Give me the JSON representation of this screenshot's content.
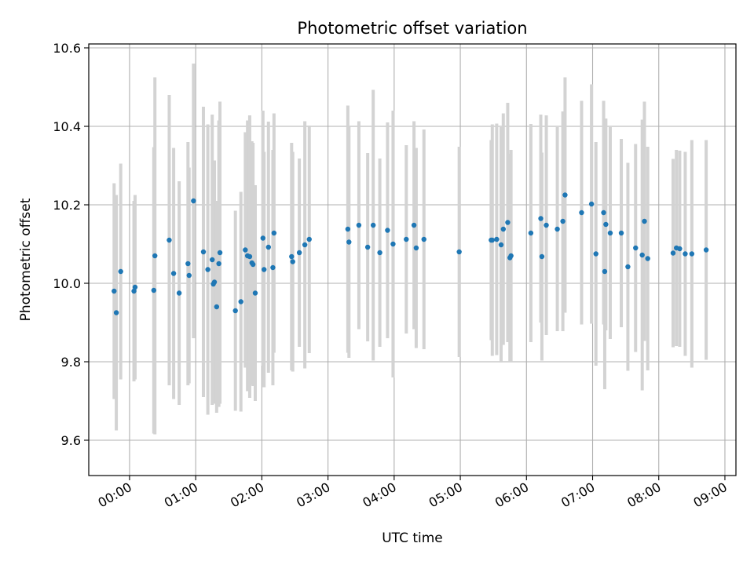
{
  "chart_data": {
    "type": "scatter",
    "title": "Photometric offset variation",
    "xlabel": "UTC time",
    "ylabel": "Photometric offset",
    "xlim": [
      "23:23",
      "09:10"
    ],
    "ylim": [
      9.51,
      10.61
    ],
    "grid": true,
    "legend": "none",
    "colors": {
      "point": "#1f77b4",
      "errorbar": "#d3d3d3",
      "grid": "#b0b0b0"
    },
    "x_ticks": [
      "00:00",
      "01:00",
      "02:00",
      "03:00",
      "04:00",
      "05:00",
      "06:00",
      "07:00",
      "08:00",
      "09:00"
    ],
    "y_ticks": [
      9.6,
      9.8,
      10.0,
      10.2,
      10.4,
      10.6
    ],
    "y_tick_labels": [
      "9.6",
      "9.8",
      "10.0",
      "10.2",
      "10.4",
      "10.6"
    ],
    "series": [
      {
        "points": [
          {
            "t": "23:46",
            "y": 9.98,
            "err": 0.275
          },
          {
            "t": "23:48",
            "y": 9.925,
            "err": 0.3
          },
          {
            "t": "23:52",
            "y": 10.03,
            "err": 0.275
          },
          {
            "t": "00:04",
            "y": 9.98,
            "err": 0.23
          },
          {
            "t": "00:05",
            "y": 9.99,
            "err": 0.235
          },
          {
            "t": "00:22",
            "y": 9.982,
            "err": 0.365
          },
          {
            "t": "00:23",
            "y": 10.07,
            "err": 0.455
          },
          {
            "t": "00:36",
            "y": 10.11,
            "err": 0.37
          },
          {
            "t": "00:40",
            "y": 10.025,
            "err": 0.32
          },
          {
            "t": "00:45",
            "y": 9.975,
            "err": 0.285
          },
          {
            "t": "00:53",
            "y": 10.05,
            "err": 0.31
          },
          {
            "t": "00:54",
            "y": 10.02,
            "err": 0.275
          },
          {
            "t": "00:58",
            "y": 10.21,
            "err": 0.35
          },
          {
            "t": "01:07",
            "y": 10.08,
            "err": 0.37
          },
          {
            "t": "01:11",
            "y": 10.035,
            "err": 0.37
          },
          {
            "t": "01:15",
            "y": 10.06,
            "err": 0.37
          },
          {
            "t": "01:16",
            "y": 9.998,
            "err": 0.29
          },
          {
            "t": "01:17",
            "y": 10.003,
            "err": 0.31
          },
          {
            "t": "01:19",
            "y": 9.94,
            "err": 0.27
          },
          {
            "t": "01:21",
            "y": 10.05,
            "err": 0.365
          },
          {
            "t": "01:22",
            "y": 10.078,
            "err": 0.385
          },
          {
            "t": "01:36",
            "y": 9.93,
            "err": 0.255
          },
          {
            "t": "01:41",
            "y": 9.953,
            "err": 0.28
          },
          {
            "t": "01:45",
            "y": 10.085,
            "err": 0.3
          },
          {
            "t": "01:47",
            "y": 10.07,
            "err": 0.345
          },
          {
            "t": "01:49",
            "y": 10.068,
            "err": 0.36
          },
          {
            "t": "01:51",
            "y": 10.052,
            "err": 0.31
          },
          {
            "t": "01:52",
            "y": 10.048,
            "err": 0.31
          },
          {
            "t": "01:54",
            "y": 9.975,
            "err": 0.275
          },
          {
            "t": "02:01",
            "y": 10.115,
            "err": 0.325
          },
          {
            "t": "02:02",
            "y": 10.035,
            "err": 0.3
          },
          {
            "t": "02:06",
            "y": 10.092,
            "err": 0.32
          },
          {
            "t": "02:10",
            "y": 10.04,
            "err": 0.3
          },
          {
            "t": "02:11",
            "y": 10.128,
            "err": 0.305
          },
          {
            "t": "02:27",
            "y": 10.068,
            "err": 0.29
          },
          {
            "t": "02:28",
            "y": 10.055,
            "err": 0.28
          },
          {
            "t": "02:34",
            "y": 10.078,
            "err": 0.24
          },
          {
            "t": "02:39",
            "y": 10.098,
            "err": 0.315
          },
          {
            "t": "02:43",
            "y": 10.112,
            "err": 0.29
          },
          {
            "t": "03:18",
            "y": 10.138,
            "err": 0.315
          },
          {
            "t": "03:19",
            "y": 10.105,
            "err": 0.295
          },
          {
            "t": "03:28",
            "y": 10.148,
            "err": 0.265
          },
          {
            "t": "03:36",
            "y": 10.092,
            "err": 0.24
          },
          {
            "t": "03:41",
            "y": 10.148,
            "err": 0.345
          },
          {
            "t": "03:47",
            "y": 10.078,
            "err": 0.24
          },
          {
            "t": "03:54",
            "y": 10.135,
            "err": 0.275
          },
          {
            "t": "03:59",
            "y": 10.1,
            "err": 0.34
          },
          {
            "t": "04:11",
            "y": 10.112,
            "err": 0.24
          },
          {
            "t": "04:18",
            "y": 10.148,
            "err": 0.265
          },
          {
            "t": "04:20",
            "y": 10.09,
            "err": 0.255
          },
          {
            "t": "04:27",
            "y": 10.112,
            "err": 0.28
          },
          {
            "t": "04:59",
            "y": 10.08,
            "err": 0.268
          },
          {
            "t": "05:28",
            "y": 10.11,
            "err": 0.255
          },
          {
            "t": "05:29",
            "y": 10.11,
            "err": 0.295
          },
          {
            "t": "05:33",
            "y": 10.112,
            "err": 0.295
          },
          {
            "t": "05:37",
            "y": 10.098,
            "err": 0.3
          },
          {
            "t": "05:39",
            "y": 10.138,
            "err": 0.295
          },
          {
            "t": "05:43",
            "y": 10.155,
            "err": 0.305
          },
          {
            "t": "05:45",
            "y": 10.065,
            "err": 0.265
          },
          {
            "t": "05:46",
            "y": 10.07,
            "err": 0.27
          },
          {
            "t": "06:04",
            "y": 10.128,
            "err": 0.278
          },
          {
            "t": "06:13",
            "y": 10.165,
            "err": 0.265
          },
          {
            "t": "06:14",
            "y": 10.068,
            "err": 0.265
          },
          {
            "t": "06:18",
            "y": 10.148,
            "err": 0.28
          },
          {
            "t": "06:28",
            "y": 10.138,
            "err": 0.26
          },
          {
            "t": "06:33",
            "y": 10.158,
            "err": 0.28
          },
          {
            "t": "06:35",
            "y": 10.225,
            "err": 0.3
          },
          {
            "t": "06:50",
            "y": 10.18,
            "err": 0.285
          },
          {
            "t": "06:59",
            "y": 10.202,
            "err": 0.305
          },
          {
            "t": "07:03",
            "y": 10.075,
            "err": 0.285
          },
          {
            "t": "07:10",
            "y": 10.18,
            "err": 0.285
          },
          {
            "t": "07:11",
            "y": 10.03,
            "err": 0.3
          },
          {
            "t": "07:12",
            "y": 10.15,
            "err": 0.27
          },
          {
            "t": "07:16",
            "y": 10.128,
            "err": 0.27
          },
          {
            "t": "07:26",
            "y": 10.128,
            "err": 0.24
          },
          {
            "t": "07:32",
            "y": 10.042,
            "err": 0.265
          },
          {
            "t": "07:39",
            "y": 10.09,
            "err": 0.265
          },
          {
            "t": "07:45",
            "y": 10.072,
            "err": 0.345
          },
          {
            "t": "07:47",
            "y": 10.158,
            "err": 0.305
          },
          {
            "t": "07:50",
            "y": 10.063,
            "err": 0.285
          },
          {
            "t": "08:13",
            "y": 10.077,
            "err": 0.24
          },
          {
            "t": "08:16",
            "y": 10.09,
            "err": 0.25
          },
          {
            "t": "08:19",
            "y": 10.088,
            "err": 0.25
          },
          {
            "t": "08:24",
            "y": 10.075,
            "err": 0.26
          },
          {
            "t": "08:30",
            "y": 10.075,
            "err": 0.29
          },
          {
            "t": "08:43",
            "y": 10.085,
            "err": 0.28
          }
        ]
      }
    ]
  }
}
